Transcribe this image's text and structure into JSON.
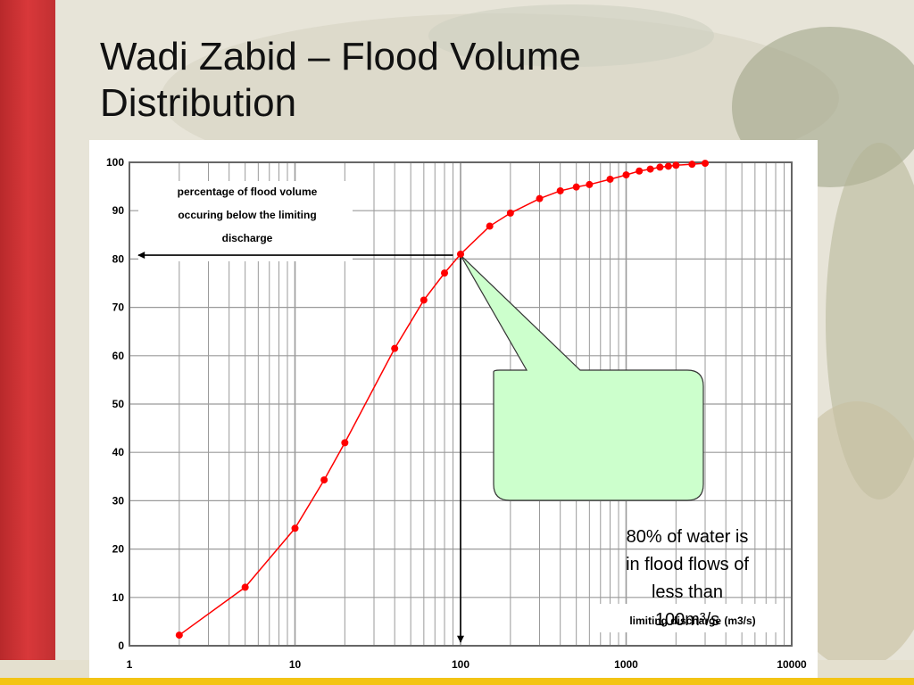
{
  "slide": {
    "title_line1": "Wadi Zabid – Flood Volume",
    "title_line2": "Distribution"
  },
  "colors": {
    "series": "#ff0000",
    "grid": "#9a9a9a",
    "callout_fill": "#ccffcc",
    "red_band": "#cc2a2a",
    "bottom_strip": "#f3c414"
  },
  "callout": {
    "line1": "80% of water is",
    "line2": "in flood flows of",
    "line3": "less than",
    "line4": "100m³/s"
  },
  "chart_data": {
    "type": "line",
    "xscale": "log",
    "xlim": [
      1,
      10000
    ],
    "ylim": [
      0,
      100
    ],
    "grid": true,
    "x_tick_labels": [
      "1",
      "10",
      "100",
      "1000",
      "10000"
    ],
    "y_tick_labels": [
      "0",
      "10",
      "20",
      "30",
      "40",
      "50",
      "60",
      "70",
      "80",
      "90",
      "100"
    ],
    "ylabel_lines": [
      "percentage of flood volume",
      "occuring below the limiting",
      "discharge"
    ],
    "xlabel": "limiting discharge (m3/s)",
    "series": [
      {
        "x": [
          2,
          5,
          10,
          15,
          20,
          40,
          60,
          80,
          100,
          150,
          200,
          300,
          400,
          500,
          600,
          800,
          1000,
          1200,
          1400,
          1600,
          1800,
          2000,
          2500,
          3000
        ],
        "y": [
          2.2,
          12.1,
          24.3,
          34.3,
          42,
          61.5,
          71.5,
          77.1,
          81,
          86.8,
          89.5,
          92.5,
          94.1,
          94.9,
          95.4,
          96.5,
          97.4,
          98.2,
          98.6,
          99,
          99.2,
          99.4,
          99.6,
          99.8
        ]
      }
    ],
    "annotations": [
      {
        "type": "arrow",
        "from": [
          90,
          80.8
        ],
        "to": [
          1,
          80.8
        ]
      },
      {
        "type": "arrow",
        "from": [
          100,
          80.8
        ],
        "to": [
          100,
          0
        ]
      }
    ]
  }
}
